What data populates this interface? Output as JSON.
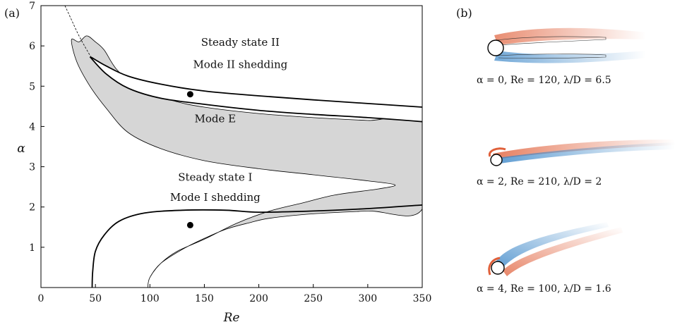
{
  "panel_a_label": "(a)",
  "panel_b_label": "(b)",
  "chart_data": {
    "type": "regime-map",
    "xlabel": "Re",
    "ylabel": "α",
    "xlim": [
      0,
      350
    ],
    "ylim": [
      0,
      7
    ],
    "xticks": [
      "0",
      "50",
      "100",
      "150",
      "200",
      "250",
      "300",
      "350"
    ],
    "yticks": [
      "1",
      "2",
      "3",
      "4",
      "5",
      "6",
      "7"
    ],
    "annotations": [
      {
        "text": "Steady state II",
        "Re": 183,
        "alpha": 6.0
      },
      {
        "text": "Mode II shedding",
        "Re": 183,
        "alpha": 5.45
      },
      {
        "text": "Mode E",
        "Re": 160,
        "alpha": 4.1
      },
      {
        "text": "Steady state I",
        "Re": 160,
        "alpha": 2.65
      },
      {
        "text": "Mode I shedding",
        "Re": 160,
        "alpha": 2.15
      }
    ],
    "markers": [
      {
        "Re": 137,
        "alpha": 4.8
      },
      {
        "Re": 137,
        "alpha": 1.55
      }
    ],
    "curves": {
      "mode_e_boundary": [
        [
          98,
          0
        ],
        [
          100,
          0.25
        ],
        [
          110,
          0.6
        ],
        [
          130,
          0.95
        ],
        [
          150,
          1.22
        ],
        [
          170,
          1.45
        ],
        [
          190,
          1.6
        ],
        [
          210,
          1.72
        ],
        [
          250,
          1.83
        ],
        [
          300,
          1.9
        ],
        [
          350,
          1.95
        ],
        [
          350,
          4.1
        ],
        [
          300,
          4.15
        ],
        [
          250,
          4.22
        ],
        [
          200,
          4.32
        ],
        [
          150,
          4.48
        ],
        [
          120,
          4.65
        ],
        [
          90,
          4.95
        ],
        [
          70,
          5.4
        ],
        [
          58,
          5.9
        ],
        [
          50,
          6.1
        ],
        [
          42,
          6.25
        ],
        [
          35,
          6.1
        ],
        [
          28,
          6.15
        ],
        [
          33,
          5.6
        ],
        [
          45,
          5.0
        ],
        [
          60,
          4.45
        ],
        [
          80,
          3.85
        ],
        [
          110,
          3.45
        ],
        [
          150,
          3.15
        ],
        [
          200,
          2.95
        ],
        [
          250,
          2.8
        ],
        [
          300,
          2.65
        ],
        [
          325,
          2.55
        ],
        [
          310,
          2.45
        ],
        [
          270,
          2.3
        ],
        [
          240,
          2.1
        ],
        [
          210,
          1.9
        ],
        [
          180,
          1.6
        ],
        [
          150,
          1.2
        ],
        [
          125,
          0.9
        ],
        [
          110,
          0.6
        ],
        [
          100,
          0.25
        ],
        [
          98,
          0
        ]
      ],
      "mode_i_boundary": [
        [
          47,
          0
        ],
        [
          47.5,
          0.4
        ],
        [
          50,
          0.9
        ],
        [
          58,
          1.3
        ],
        [
          72,
          1.65
        ],
        [
          95,
          1.85
        ],
        [
          130,
          1.92
        ],
        [
          170,
          1.92
        ],
        [
          200,
          1.87
        ],
        [
          250,
          1.9
        ],
        [
          300,
          1.96
        ],
        [
          350,
          2.05
        ]
      ],
      "mode_ii_upper": [
        [
          46,
          5.72
        ],
        [
          60,
          5.5
        ],
        [
          80,
          5.25
        ],
        [
          110,
          5.05
        ],
        [
          150,
          4.88
        ],
        [
          200,
          4.76
        ],
        [
          250,
          4.66
        ],
        [
          300,
          4.57
        ],
        [
          350,
          4.48
        ]
      ],
      "mode_ii_lower": [
        [
          45,
          5.73
        ],
        [
          60,
          5.3
        ],
        [
          80,
          4.95
        ],
        [
          110,
          4.7
        ],
        [
          150,
          4.55
        ],
        [
          200,
          4.4
        ],
        [
          250,
          4.3
        ],
        [
          300,
          4.22
        ],
        [
          350,
          4.12
        ]
      ],
      "dashed_curve": [
        [
          22,
          7.0
        ],
        [
          28,
          6.65
        ],
        [
          34,
          6.3
        ],
        [
          40,
          6.0
        ],
        [
          46,
          5.72
        ]
      ]
    },
    "colors": {
      "region_fill": "#d6d6d6",
      "line": "#000000"
    }
  },
  "panel_b": {
    "captions": [
      "α = 0, Re = 120, λ/D = 6.5",
      "α = 2, Re = 210, λ/D = 2",
      "α = 4, Re = 100, λ/D = 1.6"
    ],
    "colors": {
      "red": "#e0603a",
      "blue": "#3a86c8"
    }
  }
}
